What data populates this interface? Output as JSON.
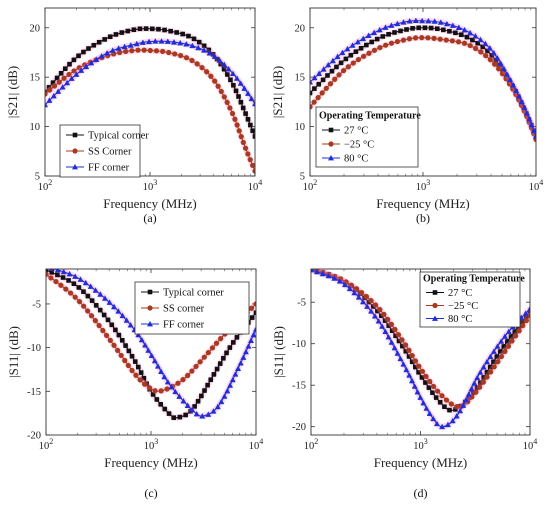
{
  "chart_data": [
    {
      "id": "a",
      "panel_label": "(a)",
      "type": "line",
      "xscale": "log",
      "xlim": [
        100,
        10000
      ],
      "ylim": [
        5,
        22
      ],
      "xticks": [
        100,
        1000,
        10000
      ],
      "xtick_labels": [
        [
          "10",
          "2"
        ],
        [
          "10",
          "3"
        ],
        [
          "10",
          "4"
        ]
      ],
      "yticks": [
        5,
        10,
        15,
        20
      ],
      "ytick_labels": [
        "5",
        "10",
        "15",
        "20"
      ],
      "xlabel": "Frequency (MHz)",
      "ylabel": "|S21| (dB)",
      "grid": false,
      "legend": {
        "placement": "bottom-left",
        "title": ""
      },
      "series": [
        {
          "name": "Typical corner",
          "color": "#111111",
          "marker": "square",
          "x": [
            100,
            200,
            400,
            700,
            1000,
            1500,
            2500,
            4000,
            6000,
            8000,
            10000
          ],
          "y": [
            13.5,
            17.0,
            19.0,
            19.8,
            19.9,
            19.7,
            19.0,
            17.3,
            14.5,
            11.5,
            9.0
          ]
        },
        {
          "name": "SS Corner",
          "color": "#a83a1e",
          "marker": "circle",
          "x": [
            100,
            200,
            400,
            700,
            1000,
            1500,
            2500,
            4000,
            6000,
            8000,
            10000
          ],
          "y": [
            13.3,
            15.8,
            17.2,
            17.7,
            17.7,
            17.5,
            16.7,
            14.8,
            11.5,
            8.0,
            5.5
          ]
        },
        {
          "name": "FF corner",
          "color": "#1d2fd6",
          "marker": "triangle",
          "x": [
            100,
            200,
            400,
            700,
            1000,
            1500,
            2500,
            4000,
            6000,
            8000,
            10000
          ],
          "y": [
            12.2,
            15.3,
            17.5,
            18.3,
            18.6,
            18.6,
            18.2,
            17.2,
            15.5,
            13.8,
            12.3
          ]
        }
      ]
    },
    {
      "id": "b",
      "panel_label": "(b)",
      "type": "line",
      "xscale": "log",
      "xlim": [
        100,
        10000
      ],
      "ylim": [
        5,
        22
      ],
      "xticks": [
        100,
        1000,
        10000
      ],
      "xtick_labels": [
        [
          "10",
          "2"
        ],
        [
          "10",
          "3"
        ],
        [
          "10",
          "4"
        ]
      ],
      "yticks": [
        5,
        10,
        15,
        20
      ],
      "ytick_labels": [
        "5",
        "10",
        "15",
        "20"
      ],
      "xlabel": "Frequency (MHz)",
      "ylabel": "|S21| (dB)",
      "grid": false,
      "legend": {
        "placement": "middle-left",
        "title": "Operating Temperature"
      },
      "series": [
        {
          "name": "27 °C",
          "color": "#111111",
          "marker": "square",
          "x": [
            100,
            200,
            400,
            700,
            1000,
            1500,
            2500,
            4000,
            6000,
            8000,
            10000
          ],
          "y": [
            13.4,
            16.7,
            18.9,
            19.8,
            20.0,
            19.8,
            19.0,
            17.3,
            14.4,
            11.6,
            9.0
          ]
        },
        {
          "name": "−25 °C",
          "color": "#a83a1e",
          "marker": "circle",
          "x": [
            100,
            200,
            400,
            700,
            1000,
            1500,
            2500,
            4000,
            6000,
            8000,
            10000
          ],
          "y": [
            12.0,
            15.7,
            17.9,
            18.8,
            19.0,
            18.8,
            18.3,
            16.7,
            14.1,
            11.4,
            8.7
          ]
        },
        {
          "name": "80 °C",
          "color": "#1d2fd6",
          "marker": "triangle",
          "x": [
            100,
            200,
            400,
            700,
            1000,
            1500,
            2500,
            4000,
            6000,
            8000,
            10000
          ],
          "y": [
            14.5,
            17.6,
            19.7,
            20.6,
            20.7,
            20.5,
            19.6,
            17.8,
            14.6,
            11.8,
            9.0
          ]
        }
      ]
    },
    {
      "id": "c",
      "panel_label": "(c)",
      "type": "line",
      "xscale": "log",
      "xlim": [
        100,
        10000
      ],
      "ylim": [
        -20,
        -1
      ],
      "xticks": [
        100,
        1000,
        10000
      ],
      "xtick_labels": [
        [
          "10",
          "2"
        ],
        [
          "10",
          "3"
        ],
        [
          "10",
          "4"
        ]
      ],
      "yticks": [
        -20,
        -15,
        -10,
        -5
      ],
      "ytick_labels": [
        "-20",
        "-15",
        "-10",
        "-5"
      ],
      "xlabel": "Frequency (MHz)",
      "ylabel": "|S11| (dB)",
      "grid": false,
      "legend": {
        "placement": "top-right",
        "title": ""
      },
      "series": [
        {
          "name": "Typical corner",
          "color": "#111111",
          "marker": "square",
          "x": [
            100,
            200,
            400,
            700,
            1000,
            1500,
            1800,
            2500,
            4000,
            6000,
            10000
          ],
          "y": [
            -1.1,
            -3.0,
            -7.0,
            -11.5,
            -15.0,
            -17.6,
            -18.0,
            -17.0,
            -13.0,
            -9.5,
            -6.0
          ]
        },
        {
          "name": "SS corner",
          "color": "#a83a1e",
          "marker": "circle",
          "x": [
            100,
            200,
            400,
            700,
            1000,
            1300,
            2000,
            3000,
            5000,
            7000,
            10000
          ],
          "y": [
            -1.6,
            -4.5,
            -9.0,
            -13.0,
            -14.7,
            -14.9,
            -13.7,
            -11.5,
            -8.5,
            -6.8,
            -5.0
          ]
        },
        {
          "name": "FF corner",
          "color": "#1d2fd6",
          "marker": "triangle",
          "x": [
            100,
            200,
            400,
            700,
            1000,
            1500,
            2500,
            3200,
            4500,
            7000,
            10000
          ],
          "y": [
            -0.7,
            -2.0,
            -4.8,
            -8.0,
            -10.8,
            -14.2,
            -17.2,
            -17.8,
            -16.5,
            -12.0,
            -7.9
          ]
        }
      ]
    },
    {
      "id": "d",
      "panel_label": "(d)",
      "type": "line",
      "xscale": "log",
      "xlim": [
        100,
        10000
      ],
      "ylim": [
        -21,
        -1
      ],
      "xticks": [
        100,
        1000,
        10000
      ],
      "xtick_labels": [
        [
          "10",
          "2"
        ],
        [
          "10",
          "3"
        ],
        [
          "10",
          "4"
        ]
      ],
      "yticks": [
        -20,
        -15,
        -10,
        -5
      ],
      "ytick_labels": [
        "-20",
        "-15",
        "-10",
        "-5"
      ],
      "xlabel": "Frequency (MHz)",
      "ylabel": "|S11| (dB)",
      "grid": false,
      "legend": {
        "placement": "top-right",
        "title": "Operating Temperature"
      },
      "series": [
        {
          "name": "27 °C",
          "color": "#111111",
          "marker": "square",
          "x": [
            100,
            200,
            400,
            700,
            1000,
            1500,
            2000,
            3000,
            5000,
            7000,
            10000
          ],
          "y": [
            -1.0,
            -2.5,
            -6.0,
            -10.5,
            -13.8,
            -17.0,
            -18.0,
            -16.0,
            -11.5,
            -8.8,
            -6.2
          ]
        },
        {
          "name": "−25 °C",
          "color": "#a83a1e",
          "marker": "circle",
          "x": [
            100,
            200,
            400,
            700,
            1000,
            1500,
            2200,
            3000,
            5000,
            7000,
            10000
          ],
          "y": [
            -1.0,
            -2.4,
            -5.5,
            -9.8,
            -13.0,
            -16.0,
            -17.6,
            -16.3,
            -12.3,
            -9.5,
            -6.6
          ]
        },
        {
          "name": "80 °C",
          "color": "#1d2fd6",
          "marker": "triangle",
          "x": [
            100,
            200,
            400,
            700,
            1000,
            1300,
            1600,
            2200,
            3500,
            6000,
            10000
          ],
          "y": [
            -1.1,
            -2.8,
            -7.0,
            -12.5,
            -16.5,
            -19.0,
            -20.0,
            -18.5,
            -13.5,
            -9.0,
            -5.8
          ]
        }
      ]
    }
  ]
}
